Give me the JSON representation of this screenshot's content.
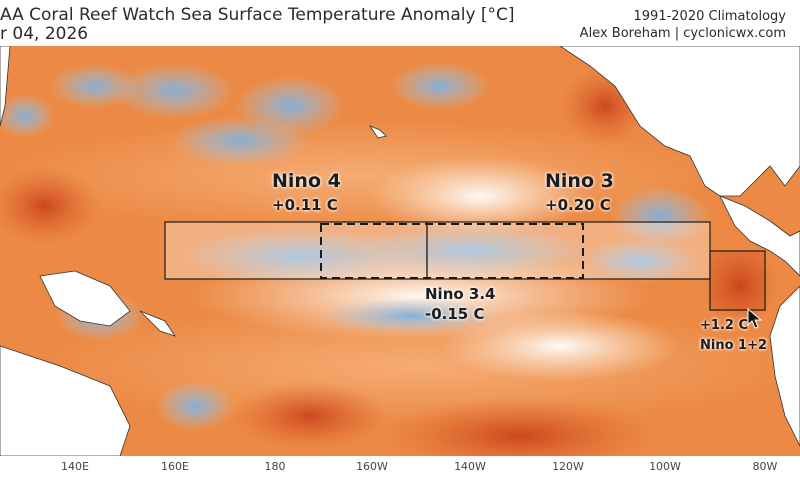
{
  "header": {
    "title": "AA Coral Reef Watch Sea Surface Temperature Anomaly [°C]",
    "date": "r 04, 2026",
    "climatology": "1991-2020 Climatology",
    "credit": "Alex Boreham | cyclonicwx.com"
  },
  "regions": {
    "nino4": {
      "name": "Nino 4",
      "value": "+0.11 C"
    },
    "nino3": {
      "name": "Nino 3",
      "value": "+0.20 C"
    },
    "nino34": {
      "name": "Nino 3.4",
      "value": "-0.15 C"
    },
    "nino12": {
      "name": "Nino 1+2",
      "value": "+1.2 C"
    }
  },
  "axis": {
    "ticks": [
      "140E",
      "160E",
      "180",
      "160W",
      "140W",
      "120W",
      "100W",
      "80W"
    ]
  },
  "colors": {
    "warm": "#e8742a",
    "cool": "#8ab7de",
    "land": "#ffffff"
  }
}
